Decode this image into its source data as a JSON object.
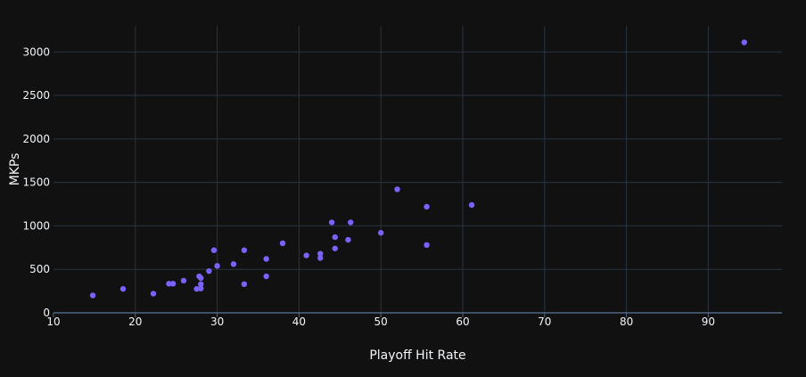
{
  "colors": {
    "background": "#111111",
    "grid": "#283442",
    "axis_line": "#506784",
    "marker": "#7b61ff",
    "text": "#f2f5fa"
  },
  "chart_data": {
    "type": "scatter",
    "title": "",
    "xlabel": "Playoff Hit Rate",
    "ylabel": "MKPs",
    "xlim": [
      10,
      99
    ],
    "ylim": [
      0,
      3300
    ],
    "grid": true,
    "x_ticks": [
      10,
      20,
      30,
      40,
      50,
      60,
      70,
      80,
      90
    ],
    "y_ticks": [
      0,
      500,
      1000,
      1500,
      2000,
      2500,
      3000
    ],
    "x_tick_labels": [
      "10",
      "20",
      "30",
      "40",
      "50",
      "60",
      "70",
      "80",
      "90"
    ],
    "y_tick_labels": [
      "0",
      "500",
      "1000",
      "1500",
      "2000",
      "2500",
      "3000"
    ],
    "points": [
      {
        "x": 14.8,
        "y": 200
      },
      {
        "x": 18.5,
        "y": 275
      },
      {
        "x": 22.2,
        "y": 220
      },
      {
        "x": 24.1,
        "y": 335
      },
      {
        "x": 24.6,
        "y": 335
      },
      {
        "x": 25.9,
        "y": 370
      },
      {
        "x": 27.5,
        "y": 275
      },
      {
        "x": 27.8,
        "y": 420
      },
      {
        "x": 28.0,
        "y": 400
      },
      {
        "x": 28.0,
        "y": 330
      },
      {
        "x": 28.0,
        "y": 280
      },
      {
        "x": 29.0,
        "y": 480
      },
      {
        "x": 29.6,
        "y": 720
      },
      {
        "x": 30.0,
        "y": 540
      },
      {
        "x": 32.0,
        "y": 560
      },
      {
        "x": 33.3,
        "y": 720
      },
      {
        "x": 33.3,
        "y": 330
      },
      {
        "x": 36.0,
        "y": 620
      },
      {
        "x": 36.0,
        "y": 420
      },
      {
        "x": 38.0,
        "y": 800
      },
      {
        "x": 40.9,
        "y": 660
      },
      {
        "x": 42.6,
        "y": 680
      },
      {
        "x": 42.6,
        "y": 630
      },
      {
        "x": 44.0,
        "y": 1040
      },
      {
        "x": 44.4,
        "y": 870
      },
      {
        "x": 44.4,
        "y": 740
      },
      {
        "x": 46.0,
        "y": 840
      },
      {
        "x": 46.3,
        "y": 1040
      },
      {
        "x": 50.0,
        "y": 920
      },
      {
        "x": 52.0,
        "y": 1420
      },
      {
        "x": 55.6,
        "y": 1220
      },
      {
        "x": 55.6,
        "y": 780
      },
      {
        "x": 61.1,
        "y": 1240
      },
      {
        "x": 94.4,
        "y": 3110
      }
    ]
  }
}
